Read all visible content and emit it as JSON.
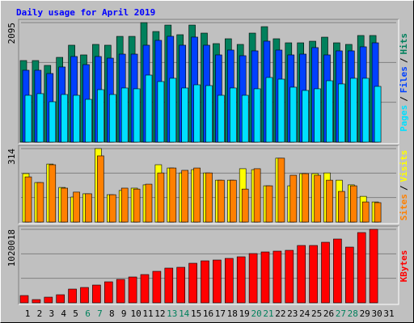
{
  "title": "Daily usage for April 2019",
  "legend_separator": "/",
  "label_color": "#000000",
  "weekend_color": "#00805c",
  "weekend_indices": [
    5,
    6,
    12,
    13,
    19,
    20,
    26,
    27
  ],
  "chart_data": [
    {
      "type": "bar",
      "ylim": [
        0,
        2095
      ],
      "yticks": [
        2095
      ],
      "series": [
        {
          "name": "Hits",
          "color": "#00805c",
          "values": [
            1430,
            1430,
            1345,
            1486,
            1699,
            1529,
            1713,
            1699,
            1854,
            1854,
            2095,
            1939,
            2052,
            1883,
            2052,
            1911,
            1727,
            1812,
            1713,
            1911,
            2024,
            1812,
            1741,
            1741,
            1769,
            1840,
            1741,
            1713,
            1869,
            1869,
            null
          ]
        },
        {
          "name": "Files",
          "color": "#0040ff",
          "values": [
            1260,
            1260,
            1203,
            1317,
            1501,
            1359,
            1501,
            1472,
            1543,
            1543,
            1699,
            1784,
            1855,
            1699,
            1841,
            1699,
            1529,
            1614,
            1515,
            1600,
            1770,
            1614,
            1529,
            1543,
            1657,
            1529,
            1600,
            1600,
            1671,
            1741,
            null
          ]
        },
        {
          "name": "Pages",
          "color": "#00e0ff",
          "values": [
            821,
            850,
            708,
            835,
            821,
            750,
            920,
            835,
            949,
            935,
            1175,
            1062,
            1119,
            949,
            1005,
            991,
            821,
            949,
            821,
            935,
            1133,
            1104,
            963,
            906,
            935,
            1076,
            1020,
            1119,
            1119,
            977,
            null
          ]
        }
      ]
    },
    {
      "type": "bar",
      "ylim": [
        0,
        314
      ],
      "yticks": [
        314
      ],
      "series": [
        {
          "name": "Visits",
          "color": "#ffff00",
          "values": [
            207,
            169,
            248,
            148,
            107,
            121,
            314,
            117,
            135,
            145,
            159,
            245,
            231,
            210,
            224,
            210,
            179,
            179,
            228,
            224,
            155,
            273,
            155,
            207,
            207,
            210,
            179,
            159,
            110,
            86,
            null
          ]
        },
        {
          "name": "Sites",
          "color": "#ff8000",
          "values": [
            193,
            169,
            245,
            145,
            128,
            121,
            283,
            117,
            145,
            141,
            162,
            210,
            231,
            221,
            231,
            210,
            179,
            179,
            141,
            228,
            155,
            273,
            200,
            207,
            200,
            179,
            131,
            155,
            86,
            83,
            null
          ]
        }
      ]
    },
    {
      "type": "bar",
      "ylim": [
        0,
        1020018
      ],
      "yticks": [
        1020018
      ],
      "categories": [
        "1",
        "2",
        "3",
        "4",
        "5",
        "6",
        "7",
        "8",
        "9",
        "10",
        "11",
        "12",
        "13",
        "14",
        "15",
        "16",
        "17",
        "18",
        "19",
        "20",
        "21",
        "22",
        "23",
        "24",
        "25",
        "26",
        "27",
        "28",
        "29",
        "30",
        "31"
      ],
      "series": [
        {
          "name": "KBytes",
          "color": "#ff0000",
          "values": [
            100881,
            44836,
            78463,
            112090,
            190553,
            212971,
            246598,
            291434,
            325061,
            358688,
            392315,
            437151,
            481987,
            493196,
            549241,
            582868,
            594077,
            616495,
            638913,
            683749,
            706167,
            717376,
            728585,
            795839,
            795839,
            840675,
            885511,
            773421,
            975183,
            1020018,
            null
          ]
        }
      ]
    }
  ]
}
